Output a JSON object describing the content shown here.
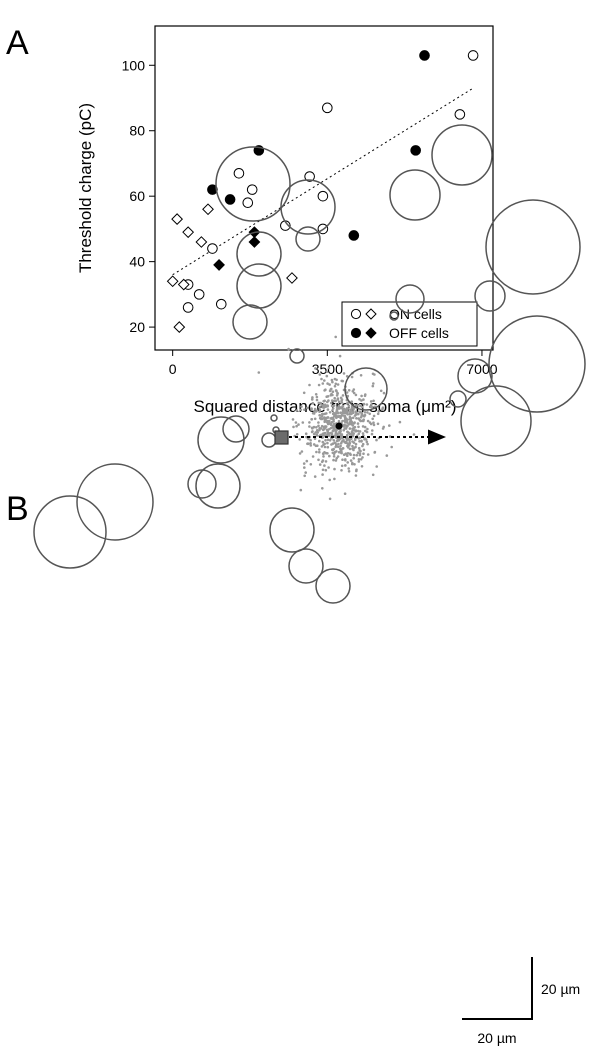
{
  "chart_data": [
    {
      "panel": "A",
      "type": "scatter",
      "xlabel": "Squared distance from soma (μm²)",
      "ylabel": "Threshold charge (pC)",
      "xlim": [
        -400,
        7250
      ],
      "ylim": [
        13,
        112
      ],
      "x_ticks": [
        0,
        3500,
        7000
      ],
      "y_ticks": [
        20,
        40,
        60,
        80,
        100
      ],
      "grid": false,
      "legend_position": "bottom-right",
      "legend": [
        {
          "label": "ON cells",
          "markers": [
            "open circle",
            "open diamond"
          ]
        },
        {
          "label": "OFF cells",
          "markers": [
            "filled circle",
            "filled diamond"
          ]
        }
      ],
      "series": [
        {
          "name": "ON cells",
          "marker": "open-circle",
          "points": [
            [
              350,
              26
            ],
            [
              600,
              30
            ],
            [
              350,
              33
            ],
            [
              1100,
              27
            ],
            [
              900,
              44
            ],
            [
              1500,
              67
            ],
            [
              1700,
              58
            ],
            [
              1800,
              62
            ],
            [
              2550,
              51
            ],
            [
              3100,
              66
            ],
            [
              3500,
              87
            ],
            [
              3400,
              60
            ],
            [
              3400,
              50
            ],
            [
              6500,
              85
            ],
            [
              6800,
              103
            ]
          ]
        },
        {
          "name": "ON cells",
          "marker": "open-diamond",
          "points": [
            [
              0,
              34
            ],
            [
              100,
              53
            ],
            [
              250,
              33
            ],
            [
              350,
              49
            ],
            [
              150,
              20
            ],
            [
              650,
              46
            ],
            [
              800,
              56
            ],
            [
              2700,
              35
            ]
          ]
        },
        {
          "name": "OFF cells",
          "marker": "filled-circle",
          "points": [
            [
              900,
              62
            ],
            [
              1300,
              59
            ],
            [
              1950,
              74
            ],
            [
              4100,
              48
            ],
            [
              5500,
              74
            ],
            [
              5700,
              103
            ]
          ]
        },
        {
          "name": "OFF cells",
          "marker": "filled-diamond",
          "points": [
            [
              1050,
              39
            ],
            [
              1850,
              46
            ],
            [
              1850,
              49
            ]
          ]
        }
      ],
      "fit_line": {
        "style": "dotted",
        "x": [
          0,
          6800
        ],
        "y": [
          36,
          93
        ]
      }
    },
    {
      "panel": "B",
      "type": "scatter",
      "scale_bars": {
        "vertical": "20 µm",
        "horizontal": "20 µm"
      }
    }
  ],
  "panel_b": {
    "colors": {
      "circle_stroke": "#555555",
      "dots": "#999999",
      "square_fill": "#6b6b6b",
      "arrow": "#000000"
    },
    "scale_bar_labels": {
      "vertical": "20 µm",
      "horizontal": "20 µm"
    }
  }
}
